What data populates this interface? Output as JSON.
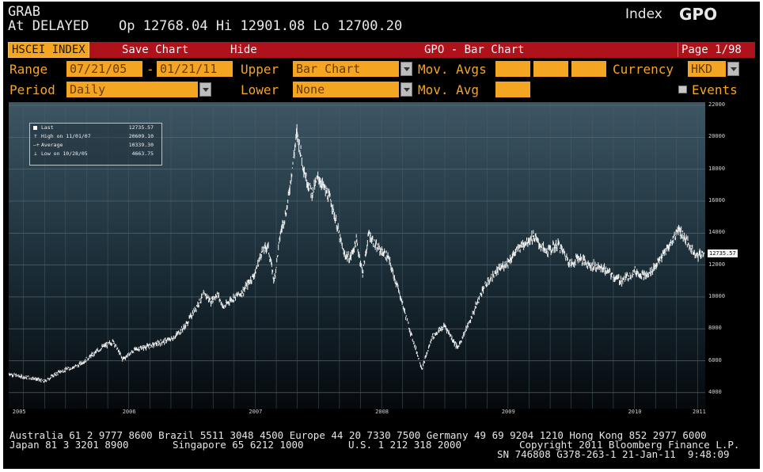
{
  "header": {
    "function_code": "GRAB",
    "delayed_label": "At DELAYED",
    "quote_line": "Op 12768.04 Hi 12901.08 Lo 12700.20",
    "index_label": "Index",
    "screen_code": "GPO"
  },
  "toolbar": {
    "ticker": "HSCEI INDEX",
    "save_chart": "Save Chart",
    "hide": "Hide",
    "title": "GPO - Bar Chart",
    "page": "Page 1/98"
  },
  "settings": {
    "range_label": "Range",
    "range_start": "07/21/05",
    "range_dash": "-",
    "range_end": "01/21/11",
    "upper_label": "Upper",
    "upper_value": "Bar Chart",
    "mov_avgs_label": "Mov. Avgs",
    "currency_label": "Currency",
    "currency_value": "HKD",
    "period_label": "Period",
    "period_value": "Daily",
    "lower_label": "Lower",
    "lower_value": "None",
    "mov_avg_label": "Mov. Avg",
    "events_label": "Events"
  },
  "legend": [
    {
      "key": "Last",
      "value": "12735.57"
    },
    {
      "key": "High on 11/01/07",
      "value": "20609.10"
    },
    {
      "key": "Average",
      "value": "10339.30"
    },
    {
      "key": "Low on 10/28/05",
      "value": "4663.75"
    }
  ],
  "last_price_tag": "12735.57",
  "chart_data": {
    "type": "bar",
    "x_ticks": [
      "2005",
      "2006",
      "2007",
      "2008",
      "2009",
      "2010",
      "2011"
    ],
    "y_ticks": [
      "22000",
      "20000",
      "18000",
      "16000",
      "14000",
      "12000",
      "10000",
      "8000",
      "6000",
      "4000"
    ],
    "ylim": [
      3000,
      22200
    ],
    "xlim": [
      2005.55,
      2011.06
    ],
    "series": [
      {
        "x": [
          2005.55,
          2005.65,
          2005.75,
          2005.83,
          2005.95,
          2006.1,
          2006.2,
          2006.3,
          2006.38,
          2006.45,
          2006.55,
          2006.7,
          2006.85,
          2006.95,
          2007.05,
          2007.1,
          2007.15,
          2007.2,
          2007.25,
          2007.3,
          2007.4,
          2007.5,
          2007.55,
          2007.6,
          2007.65,
          2007.7,
          2007.75,
          2007.83,
          2007.9,
          2007.95,
          2008.0,
          2008.1,
          2008.2,
          2008.25,
          2008.3,
          2008.35,
          2008.4,
          2008.45,
          2008.55,
          2008.65,
          2008.72,
          2008.78,
          2008.82,
          2008.9,
          2009.0,
          2009.1,
          2009.2,
          2009.3,
          2009.4,
          2009.5,
          2009.55,
          2009.6,
          2009.7,
          2009.8,
          2009.9,
          2010.0,
          2010.05,
          2010.15,
          2010.25,
          2010.35,
          2010.4,
          2010.5,
          2010.6,
          2010.7,
          2010.8,
          2010.85,
          2010.95,
          2011.0,
          2011.05
        ],
        "values": [
          5200,
          5000,
          4900,
          4700,
          5300,
          5700,
          6300,
          6900,
          7200,
          6100,
          6700,
          7000,
          7400,
          8200,
          9600,
          10200,
          9700,
          10200,
          9300,
          9800,
          10300,
          11500,
          12800,
          13200,
          11000,
          14000,
          15500,
          20300,
          17500,
          16500,
          17500,
          16000,
          12700,
          12400,
          13500,
          11500,
          14000,
          13200,
          12500,
          10000,
          8000,
          6500,
          5500,
          7500,
          8200,
          6800,
          8500,
          10500,
          11500,
          12200,
          12700,
          13200,
          13800,
          12800,
          13300,
          12000,
          12500,
          12000,
          11800,
          11200,
          11000,
          11600,
          11300,
          12300,
          13500,
          14300,
          13000,
          12600,
          12735
        ]
      }
    ]
  },
  "footer": {
    "line1": "Australia 61 2 9777 8600 Brazil 5511 3048 4500 Europe 44 20 7330 7500 Germany 49 69 9204 1210 Hong Kong 852 2977 6000",
    "line2_left": "Japan 81 3 3201 8900",
    "line2_mid1": "Singapore 65 6212 1000",
    "line2_mid2": "U.S. 1 212 318 2000",
    "line2_right": "Copyright 2011 Bloomberg Finance L.P.",
    "line3": "SN 746808 G378-263-1 21-Jan-11  9:48:09"
  },
  "colors": {
    "amber": "#f4a623",
    "toolbar_red": "#b0121b",
    "price_line": "#f2f2f2"
  }
}
